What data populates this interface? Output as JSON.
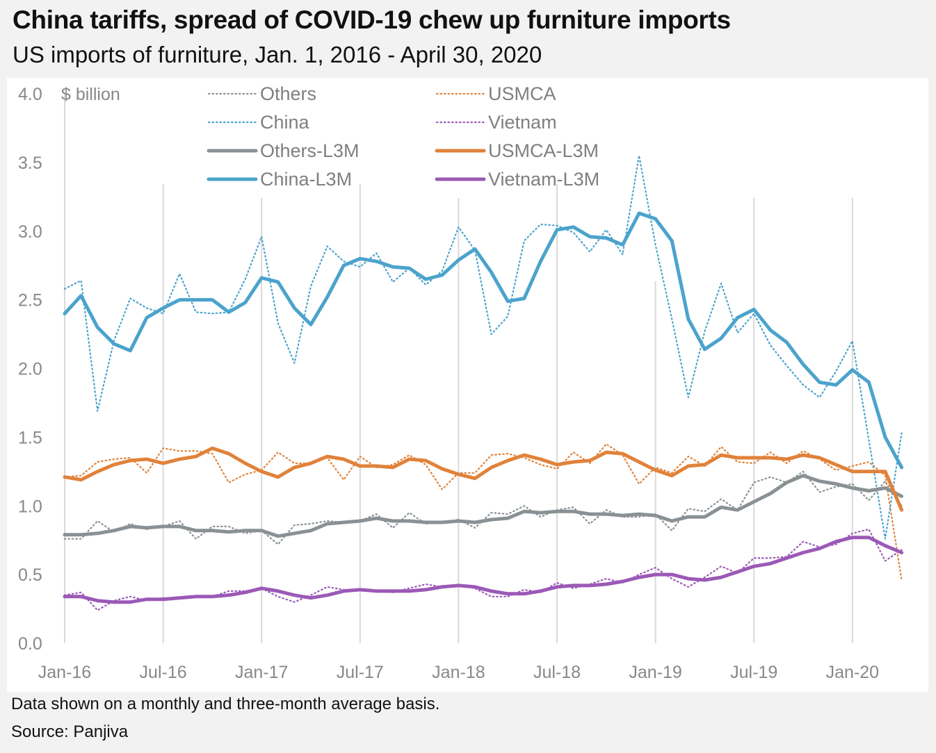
{
  "title": "China tariffs, spread of COVID-19 chew up furniture imports",
  "subtitle": "US imports of furniture, Jan. 1, 2016 - April 30, 2020",
  "footnote": "Data shown on a monthly and three-month average basis.",
  "source": "Source: Panjiva",
  "chart_data": {
    "type": "line",
    "ylabel": "$ billion",
    "ylim": [
      0,
      4.0
    ],
    "yticks": [
      "0.0",
      "0.5",
      "1.0",
      "1.5",
      "2.0",
      "2.5",
      "3.0",
      "3.5",
      "4.0"
    ],
    "xticks": [
      "Jan-16",
      "Jul-16",
      "Jan-17",
      "Jul-17",
      "Jan-18",
      "Jul-18",
      "Jan-19",
      "Jul-19",
      "Jan-20"
    ],
    "x_start": "2016-01",
    "x_end": "2020-04",
    "grid": "vertical at January and July",
    "legend_placement": "top",
    "series": [
      {
        "name": "Others",
        "style": "dotted",
        "color": "#8a9194",
        "values": [
          0.76,
          0.76,
          0.89,
          0.81,
          0.87,
          0.83,
          0.85,
          0.89,
          0.76,
          0.85,
          0.85,
          0.8,
          0.82,
          0.72,
          0.86,
          0.87,
          0.89,
          0.88,
          0.89,
          0.94,
          0.84,
          0.95,
          0.87,
          0.88,
          0.9,
          0.84,
          0.95,
          0.94,
          1.0,
          0.92,
          0.97,
          0.99,
          0.87,
          0.97,
          0.92,
          0.92,
          0.94,
          0.82,
          0.98,
          0.96,
          1.05,
          0.97,
          1.17,
          1.21,
          1.17,
          1.25,
          1.1,
          1.14,
          1.16,
          1.04,
          1.18,
          1.0
        ]
      },
      {
        "name": "USMCA",
        "style": "dotted",
        "color": "#e0823a",
        "values": [
          1.21,
          1.22,
          1.32,
          1.34,
          1.35,
          1.24,
          1.42,
          1.4,
          1.4,
          1.38,
          1.17,
          1.23,
          1.26,
          1.39,
          1.31,
          1.31,
          1.35,
          1.19,
          1.36,
          1.28,
          1.3,
          1.37,
          1.3,
          1.12,
          1.24,
          1.24,
          1.37,
          1.38,
          1.35,
          1.3,
          1.27,
          1.39,
          1.31,
          1.45,
          1.37,
          1.16,
          1.28,
          1.24,
          1.36,
          1.29,
          1.43,
          1.32,
          1.31,
          1.39,
          1.31,
          1.4,
          1.34,
          1.26,
          1.29,
          1.32,
          1.22,
          0.46
        ]
      },
      {
        "name": "China",
        "style": "dotted",
        "color": "#4ba3cc",
        "values": [
          2.58,
          2.64,
          1.69,
          2.2,
          2.51,
          2.44,
          2.4,
          2.69,
          2.41,
          2.4,
          2.41,
          2.65,
          2.96,
          2.33,
          2.04,
          2.6,
          2.89,
          2.78,
          2.74,
          2.84,
          2.63,
          2.73,
          2.61,
          2.71,
          3.03,
          2.86,
          2.25,
          2.38,
          2.93,
          3.05,
          3.04,
          2.99,
          2.85,
          3.01,
          2.83,
          3.55,
          2.9,
          2.36,
          1.79,
          2.27,
          2.62,
          2.26,
          2.4,
          2.17,
          2.02,
          1.88,
          1.79,
          1.98,
          2.2,
          1.48,
          0.76,
          1.53
        ]
      },
      {
        "name": "Vietnam",
        "style": "dotted",
        "color": "#9b59b6",
        "values": [
          0.35,
          0.37,
          0.24,
          0.31,
          0.34,
          0.31,
          0.33,
          0.33,
          0.34,
          0.34,
          0.38,
          0.38,
          0.4,
          0.34,
          0.3,
          0.35,
          0.41,
          0.39,
          0.39,
          0.38,
          0.37,
          0.4,
          0.43,
          0.41,
          0.42,
          0.4,
          0.34,
          0.34,
          0.39,
          0.37,
          0.44,
          0.4,
          0.43,
          0.47,
          0.44,
          0.5,
          0.55,
          0.47,
          0.41,
          0.48,
          0.56,
          0.51,
          0.62,
          0.62,
          0.63,
          0.74,
          0.7,
          0.72,
          0.8,
          0.83,
          0.6,
          0.68
        ]
      },
      {
        "name": "Others-L3M",
        "style": "solid",
        "color": "#8a9194",
        "values": [
          0.79,
          0.79,
          0.8,
          0.82,
          0.85,
          0.84,
          0.85,
          0.85,
          0.82,
          0.82,
          0.81,
          0.82,
          0.82,
          0.78,
          0.8,
          0.82,
          0.87,
          0.88,
          0.89,
          0.91,
          0.89,
          0.89,
          0.88,
          0.88,
          0.89,
          0.88,
          0.9,
          0.91,
          0.96,
          0.95,
          0.96,
          0.96,
          0.94,
          0.94,
          0.93,
          0.94,
          0.93,
          0.89,
          0.92,
          0.92,
          0.99,
          0.97,
          1.03,
          1.09,
          1.17,
          1.22,
          1.18,
          1.16,
          1.13,
          1.11,
          1.13,
          1.07
        ]
      },
      {
        "name": "USMCA-L3M",
        "style": "solid",
        "color": "#e0823a",
        "values": [
          1.21,
          1.19,
          1.25,
          1.3,
          1.33,
          1.34,
          1.31,
          1.34,
          1.36,
          1.42,
          1.38,
          1.31,
          1.25,
          1.21,
          1.28,
          1.31,
          1.36,
          1.34,
          1.29,
          1.29,
          1.28,
          1.34,
          1.33,
          1.27,
          1.23,
          1.2,
          1.28,
          1.33,
          1.37,
          1.34,
          1.3,
          1.32,
          1.33,
          1.39,
          1.38,
          1.32,
          1.26,
          1.22,
          1.29,
          1.3,
          1.37,
          1.35,
          1.35,
          1.35,
          1.34,
          1.37,
          1.35,
          1.3,
          1.25,
          1.25,
          1.25,
          0.97
        ]
      },
      {
        "name": "China-L3M",
        "style": "solid",
        "color": "#4ba3cc",
        "values": [
          2.4,
          2.53,
          2.3,
          2.18,
          2.13,
          2.37,
          2.44,
          2.5,
          2.5,
          2.5,
          2.41,
          2.48,
          2.66,
          2.63,
          2.44,
          2.32,
          2.52,
          2.75,
          2.8,
          2.78,
          2.74,
          2.73,
          2.65,
          2.68,
          2.79,
          2.87,
          2.7,
          2.49,
          2.51,
          2.78,
          3.01,
          3.03,
          2.96,
          2.95,
          2.9,
          3.13,
          3.09,
          2.93,
          2.36,
          2.14,
          2.22,
          2.37,
          2.43,
          2.28,
          2.19,
          2.03,
          1.9,
          1.88,
          1.99,
          1.9,
          1.5,
          1.28
        ]
      },
      {
        "name": "Vietnam-L3M",
        "style": "solid",
        "color": "#9b59b6",
        "values": [
          0.34,
          0.34,
          0.31,
          0.3,
          0.3,
          0.32,
          0.32,
          0.33,
          0.34,
          0.34,
          0.35,
          0.37,
          0.4,
          0.38,
          0.35,
          0.33,
          0.35,
          0.38,
          0.39,
          0.38,
          0.38,
          0.38,
          0.39,
          0.41,
          0.42,
          0.41,
          0.38,
          0.36,
          0.36,
          0.38,
          0.41,
          0.42,
          0.42,
          0.43,
          0.45,
          0.48,
          0.5,
          0.5,
          0.47,
          0.46,
          0.48,
          0.52,
          0.56,
          0.58,
          0.62,
          0.66,
          0.69,
          0.74,
          0.77,
          0.77,
          0.71,
          0.66
        ]
      }
    ]
  }
}
